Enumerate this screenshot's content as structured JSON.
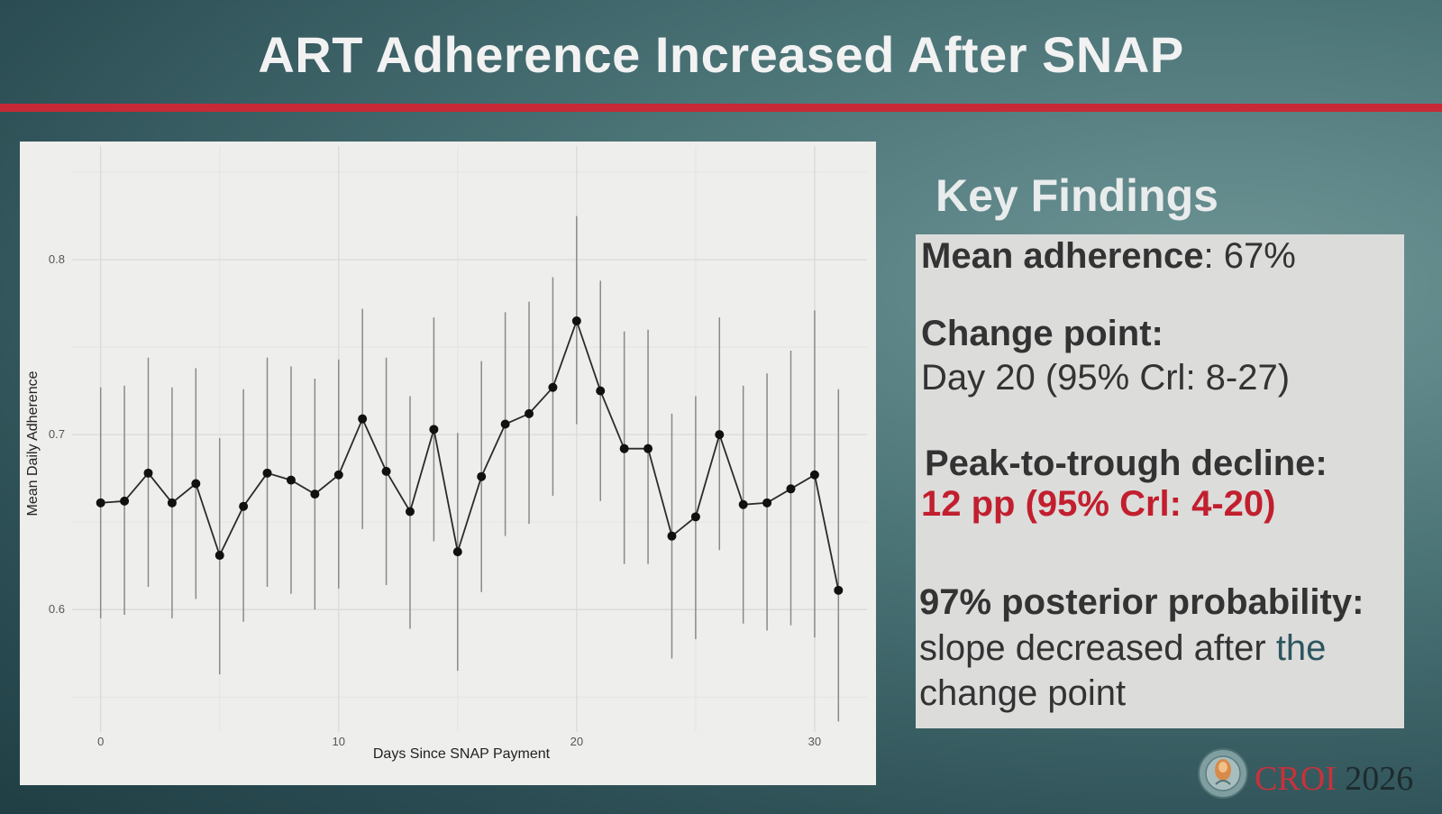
{
  "slide": {
    "title": "ART Adherence Increased After SNAP"
  },
  "key_findings": {
    "heading": "Key Findings",
    "mean_adherence_label": "Mean adherence",
    "mean_adherence_value": ": 67%",
    "change_point_label": "Change point:",
    "change_point_value": "Day 20 (95% Crl: 8-27)",
    "peak_label": "Peak-to-trough decline:",
    "peak_value": "12 pp (95% Crl: 4-20)",
    "posterior_label": "97% posterior probability:",
    "posterior_text_1": "slope decreased after ",
    "posterior_text_highlight": "the",
    "posterior_text_2": "change point"
  },
  "branding": {
    "croi": "CROI",
    "year": "2026"
  },
  "colors": {
    "accent_red": "#c72a36",
    "highlight_red": "#c21f2e",
    "panel_bg": "#dcdcdb"
  },
  "chart_data": {
    "type": "line",
    "xlabel": "Days Since SNAP Payment",
    "ylabel": "Mean Daily Adherence",
    "xlim": [
      -1.2,
      32.2
    ],
    "ylim": [
      0.53,
      0.865
    ],
    "xticks": [
      0,
      10,
      20,
      30
    ],
    "yticks": [
      0.6,
      0.7,
      0.8
    ],
    "grid": true,
    "error_bars": true,
    "points": [
      {
        "x": 0,
        "y": 0.661,
        "lo": 0.595,
        "hi": 0.727
      },
      {
        "x": 1,
        "y": 0.662,
        "lo": 0.597,
        "hi": 0.728
      },
      {
        "x": 2,
        "y": 0.678,
        "lo": 0.613,
        "hi": 0.744
      },
      {
        "x": 3,
        "y": 0.661,
        "lo": 0.595,
        "hi": 0.727
      },
      {
        "x": 4,
        "y": 0.672,
        "lo": 0.606,
        "hi": 0.738
      },
      {
        "x": 5,
        "y": 0.631,
        "lo": 0.563,
        "hi": 0.698
      },
      {
        "x": 6,
        "y": 0.659,
        "lo": 0.593,
        "hi": 0.726
      },
      {
        "x": 7,
        "y": 0.678,
        "lo": 0.613,
        "hi": 0.744
      },
      {
        "x": 8,
        "y": 0.674,
        "lo": 0.609,
        "hi": 0.739
      },
      {
        "x": 9,
        "y": 0.666,
        "lo": 0.6,
        "hi": 0.732
      },
      {
        "x": 10,
        "y": 0.677,
        "lo": 0.612,
        "hi": 0.743
      },
      {
        "x": 11,
        "y": 0.709,
        "lo": 0.646,
        "hi": 0.772
      },
      {
        "x": 12,
        "y": 0.679,
        "lo": 0.614,
        "hi": 0.744
      },
      {
        "x": 13,
        "y": 0.656,
        "lo": 0.589,
        "hi": 0.722
      },
      {
        "x": 14,
        "y": 0.703,
        "lo": 0.639,
        "hi": 0.767
      },
      {
        "x": 15,
        "y": 0.633,
        "lo": 0.565,
        "hi": 0.701
      },
      {
        "x": 16,
        "y": 0.676,
        "lo": 0.61,
        "hi": 0.742
      },
      {
        "x": 17,
        "y": 0.706,
        "lo": 0.642,
        "hi": 0.77
      },
      {
        "x": 18,
        "y": 0.712,
        "lo": 0.649,
        "hi": 0.776
      },
      {
        "x": 19,
        "y": 0.727,
        "lo": 0.665,
        "hi": 0.79
      },
      {
        "x": 20,
        "y": 0.765,
        "lo": 0.706,
        "hi": 0.825
      },
      {
        "x": 21,
        "y": 0.725,
        "lo": 0.662,
        "hi": 0.788
      },
      {
        "x": 22,
        "y": 0.692,
        "lo": 0.626,
        "hi": 0.759
      },
      {
        "x": 23,
        "y": 0.692,
        "lo": 0.626,
        "hi": 0.76
      },
      {
        "x": 24,
        "y": 0.642,
        "lo": 0.572,
        "hi": 0.712
      },
      {
        "x": 25,
        "y": 0.653,
        "lo": 0.583,
        "hi": 0.722
      },
      {
        "x": 26,
        "y": 0.7,
        "lo": 0.634,
        "hi": 0.767
      },
      {
        "x": 27,
        "y": 0.66,
        "lo": 0.592,
        "hi": 0.728
      },
      {
        "x": 28,
        "y": 0.661,
        "lo": 0.588,
        "hi": 0.735
      },
      {
        "x": 29,
        "y": 0.669,
        "lo": 0.591,
        "hi": 0.748
      },
      {
        "x": 30,
        "y": 0.677,
        "lo": 0.584,
        "hi": 0.771
      },
      {
        "x": 31,
        "y": 0.611,
        "lo": 0.536,
        "hi": 0.726
      }
    ]
  }
}
